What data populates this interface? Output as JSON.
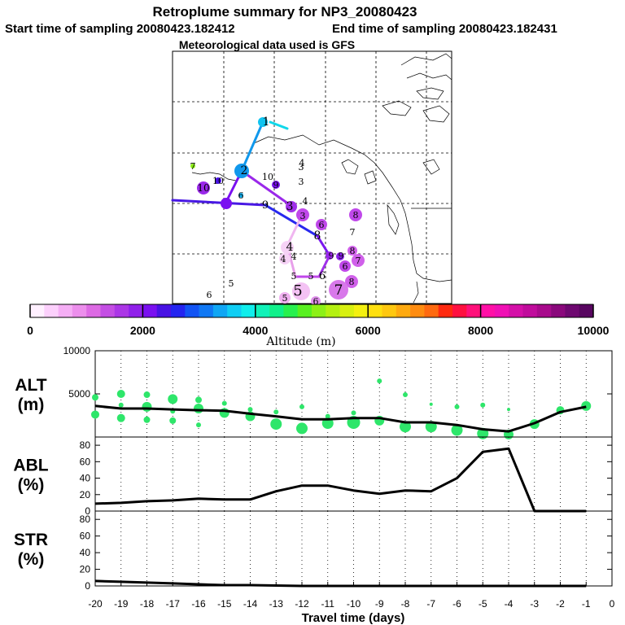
{
  "header": {
    "title": "Retroplume summary for NP3_20080423",
    "start_label": "Start time of sampling 20080423.182412",
    "end_label": "End time of sampling 20080423.182431",
    "met_label": "Meteorological data used is GFS"
  },
  "colorbar": {
    "label": "Altitude (m)",
    "ticks": [
      "0",
      "2000",
      "4000",
      "6000",
      "8000",
      "10000"
    ],
    "min": 0,
    "max": 10000,
    "colors": [
      "#fff0ff",
      "#fcd0fc",
      "#f5aef5",
      "#ec8eec",
      "#dd6ae4",
      "#c44ee4",
      "#ab36e6",
      "#9020ea",
      "#7a10f0",
      "#4812e4",
      "#2424f0",
      "#1254f4",
      "#1078f4",
      "#10a6f4",
      "#10cef4",
      "#10eeec",
      "#10f2b8",
      "#10f08a",
      "#28f04e",
      "#58f020",
      "#8cf016",
      "#b4f010",
      "#d8f010",
      "#f4f010",
      "#ffe010",
      "#ffc810",
      "#ffaa10",
      "#ff8c10",
      "#ff6a10",
      "#ff2a10",
      "#ff1040",
      "#ff107a",
      "#ff10a6",
      "#f010b4",
      "#d410a8",
      "#c00c9c",
      "#a80a8c",
      "#8a087c",
      "#6e0870",
      "#580660"
    ]
  },
  "map": {
    "labels": [
      {
        "text": "1",
        "lon": 1
      },
      {
        "text": "2",
        "lon": 2
      },
      {
        "text": "3",
        "lon": 3
      },
      {
        "text": "4",
        "lon": 4
      },
      {
        "text": "5",
        "lon": 5
      },
      {
        "text": "6",
        "lon": 6
      },
      {
        "text": "7",
        "lon": 7
      },
      {
        "text": "8",
        "lon": 8
      },
      {
        "text": "9",
        "lon": 9
      },
      {
        "text": "10",
        "lon": 10
      }
    ]
  },
  "chart_data": [
    {
      "type": "line",
      "panel": "ALT",
      "ylabel_line1": "ALT",
      "ylabel_line2": "(m)",
      "x": [
        -20,
        -19,
        -18,
        -17,
        -16,
        -15,
        -14,
        -13,
        -12,
        -11,
        -10,
        -9,
        -8,
        -7,
        -6,
        -5,
        -4,
        -3,
        -2,
        -1
      ],
      "values": [
        3600,
        3300,
        3300,
        3200,
        3100,
        3050,
        2700,
        2400,
        2050,
        2050,
        2200,
        2200,
        1700,
        1700,
        1400,
        900,
        650,
        1600,
        2900,
        3500
      ],
      "ylim": [
        0,
        10000
      ],
      "yticks": [
        "5000",
        "10000"
      ],
      "scatter_color": "#2ee66a",
      "scatter": [
        {
          "x": -20,
          "y": 4600,
          "s": 4
        },
        {
          "x": -20,
          "y": 2600,
          "s": 5
        },
        {
          "x": -19,
          "y": 5000,
          "s": 5
        },
        {
          "x": -19,
          "y": 3700,
          "s": 3
        },
        {
          "x": -19,
          "y": 2200,
          "s": 5
        },
        {
          "x": -18,
          "y": 4900,
          "s": 4
        },
        {
          "x": -18,
          "y": 3500,
          "s": 6
        },
        {
          "x": -18,
          "y": 2000,
          "s": 4
        },
        {
          "x": -17,
          "y": 4400,
          "s": 6
        },
        {
          "x": -17,
          "y": 3000,
          "s": 3
        },
        {
          "x": -17,
          "y": 1900,
          "s": 4
        },
        {
          "x": -16,
          "y": 4300,
          "s": 4
        },
        {
          "x": -16,
          "y": 3300,
          "s": 6
        },
        {
          "x": -16,
          "y": 1400,
          "s": 3
        },
        {
          "x": -15,
          "y": 3900,
          "s": 3
        },
        {
          "x": -15,
          "y": 2800,
          "s": 6
        },
        {
          "x": -14,
          "y": 3200,
          "s": 3
        },
        {
          "x": -14,
          "y": 2400,
          "s": 6
        },
        {
          "x": -13,
          "y": 2900,
          "s": 3
        },
        {
          "x": -13,
          "y": 1500,
          "s": 7
        },
        {
          "x": -12,
          "y": 3500,
          "s": 3
        },
        {
          "x": -12,
          "y": 1000,
          "s": 7
        },
        {
          "x": -11,
          "y": 2400,
          "s": 3
        },
        {
          "x": -11,
          "y": 1600,
          "s": 7
        },
        {
          "x": -10,
          "y": 2800,
          "s": 3
        },
        {
          "x": -10,
          "y": 1700,
          "s": 8
        },
        {
          "x": -9,
          "y": 6500,
          "s": 3
        },
        {
          "x": -9,
          "y": 1900,
          "s": 6
        },
        {
          "x": -8,
          "y": 4900,
          "s": 3
        },
        {
          "x": -8,
          "y": 1200,
          "s": 7
        },
        {
          "x": -7,
          "y": 3800,
          "s": 2
        },
        {
          "x": -7,
          "y": 1200,
          "s": 7
        },
        {
          "x": -6,
          "y": 3500,
          "s": 3
        },
        {
          "x": -6,
          "y": 800,
          "s": 7
        },
        {
          "x": -5,
          "y": 3700,
          "s": 3
        },
        {
          "x": -5,
          "y": 400,
          "s": 7
        },
        {
          "x": -4,
          "y": 3200,
          "s": 2
        },
        {
          "x": -4,
          "y": 300,
          "s": 6
        },
        {
          "x": -3,
          "y": 1500,
          "s": 6
        },
        {
          "x": -2,
          "y": 3100,
          "s": 5
        },
        {
          "x": -1,
          "y": 3600,
          "s": 6
        }
      ]
    },
    {
      "type": "line",
      "panel": "ABL",
      "ylabel_line1": "ABL",
      "ylabel_line2": "(%)",
      "x": [
        -20,
        -19,
        -18,
        -17,
        -16,
        -15,
        -14,
        -13,
        -12,
        -11,
        -10,
        -9,
        -8,
        -7,
        -6,
        -5,
        -4,
        -3,
        -2,
        -1
      ],
      "values": [
        9,
        10,
        12,
        13,
        15,
        14,
        14,
        24,
        31,
        31,
        25,
        21,
        25,
        24,
        40,
        72,
        76,
        0,
        0,
        0
      ],
      "ylim": [
        0,
        90
      ],
      "yticks": [
        "0",
        "20",
        "40",
        "60",
        "80"
      ]
    },
    {
      "type": "line",
      "panel": "STR",
      "ylabel_line1": "STR",
      "ylabel_line2": "(%)",
      "x": [
        -20,
        -19,
        -18,
        -17,
        -16,
        -15,
        -14,
        -13,
        -12,
        -11,
        -10,
        -9,
        -8,
        -7,
        -6,
        -5,
        -4,
        -3,
        -2,
        -1
      ],
      "values": [
        6,
        5,
        4,
        3,
        2,
        1,
        1,
        0.5,
        0,
        0,
        0,
        0,
        0,
        0,
        0,
        0,
        0,
        0,
        0,
        0
      ],
      "ylim": [
        0,
        90
      ],
      "yticks": [
        "0",
        "20",
        "40",
        "60",
        "80"
      ]
    }
  ],
  "xaxis": {
    "label": "Travel time (days)",
    "ticks": [
      "-20",
      "-19",
      "-18",
      "-17",
      "-16",
      "-15",
      "-14",
      "-13",
      "-12",
      "-11",
      "-10",
      "-9",
      "-8",
      "-7",
      "-6",
      "-5",
      "-4",
      "-3",
      "-2",
      "-1",
      "0"
    ],
    "xlim": [
      -20,
      0
    ]
  }
}
